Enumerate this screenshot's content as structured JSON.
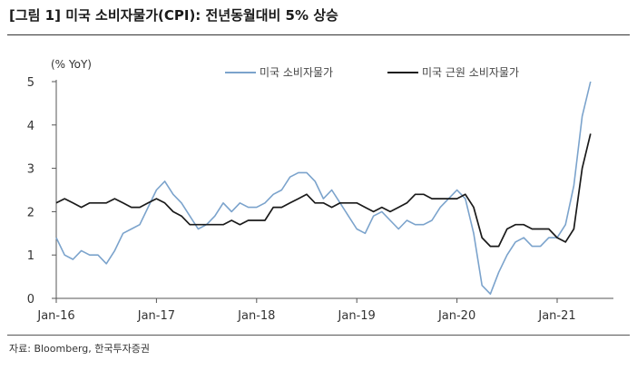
{
  "figure": {
    "title": "[그림 1] 미국 소비자물가(CPI): 전년동월대비 5% 상승",
    "source": "자료: Bloomberg, 한국투자증권"
  },
  "chart_data": {
    "type": "line",
    "title": "[그림 1] 미국 소비자물가(CPI): 전년동월대비 5% 상승",
    "unit_label": "(% YoY)",
    "ylim": [
      0,
      5
    ],
    "yticks": [
      0,
      1,
      2,
      3,
      4,
      5
    ],
    "x_tick_labels": [
      "Jan-16",
      "Jan-17",
      "Jan-18",
      "Jan-19",
      "Jan-20",
      "Jan-21"
    ],
    "x_tick_months": [
      "2016-01",
      "2017-01",
      "2018-01",
      "2019-01",
      "2020-01",
      "2021-01"
    ],
    "x": [
      "2016-01",
      "2016-02",
      "2016-03",
      "2016-04",
      "2016-05",
      "2016-06",
      "2016-07",
      "2016-08",
      "2016-09",
      "2016-10",
      "2016-11",
      "2016-12",
      "2017-01",
      "2017-02",
      "2017-03",
      "2017-04",
      "2017-05",
      "2017-06",
      "2017-07",
      "2017-08",
      "2017-09",
      "2017-10",
      "2017-11",
      "2017-12",
      "2018-01",
      "2018-02",
      "2018-03",
      "2018-04",
      "2018-05",
      "2018-06",
      "2018-07",
      "2018-08",
      "2018-09",
      "2018-10",
      "2018-11",
      "2018-12",
      "2019-01",
      "2019-02",
      "2019-03",
      "2019-04",
      "2019-05",
      "2019-06",
      "2019-07",
      "2019-08",
      "2019-09",
      "2019-10",
      "2019-11",
      "2019-12",
      "2020-01",
      "2020-02",
      "2020-03",
      "2020-04",
      "2020-05",
      "2020-06",
      "2020-07",
      "2020-08",
      "2020-09",
      "2020-10",
      "2020-11",
      "2020-12",
      "2021-01",
      "2021-02",
      "2021-03",
      "2021-04",
      "2021-05"
    ],
    "legend_position": "top",
    "grid": false,
    "series": [
      {
        "name": "미국 소비자물가",
        "color": "#7ba3cc",
        "values": [
          1.4,
          1.0,
          0.9,
          1.1,
          1.0,
          1.0,
          0.8,
          1.1,
          1.5,
          1.6,
          1.7,
          2.1,
          2.5,
          2.7,
          2.4,
          2.2,
          1.9,
          1.6,
          1.7,
          1.9,
          2.2,
          2.0,
          2.2,
          2.1,
          2.1,
          2.2,
          2.4,
          2.5,
          2.8,
          2.9,
          2.9,
          2.7,
          2.3,
          2.5,
          2.2,
          1.9,
          1.6,
          1.5,
          1.9,
          2.0,
          1.8,
          1.6,
          1.8,
          1.7,
          1.7,
          1.8,
          2.1,
          2.3,
          2.5,
          2.3,
          1.5,
          0.3,
          0.1,
          0.6,
          1.0,
          1.3,
          1.4,
          1.2,
          1.2,
          1.4,
          1.4,
          1.7,
          2.6,
          4.2,
          5.0
        ]
      },
      {
        "name": "미국 근원 소비자물가",
        "color": "#1a1a1a",
        "values": [
          2.2,
          2.3,
          2.2,
          2.1,
          2.2,
          2.2,
          2.2,
          2.3,
          2.2,
          2.1,
          2.1,
          2.2,
          2.3,
          2.2,
          2.0,
          1.9,
          1.7,
          1.7,
          1.7,
          1.7,
          1.7,
          1.8,
          1.7,
          1.8,
          1.8,
          1.8,
          2.1,
          2.1,
          2.2,
          2.3,
          2.4,
          2.2,
          2.2,
          2.1,
          2.2,
          2.2,
          2.2,
          2.1,
          2.0,
          2.1,
          2.0,
          2.1,
          2.2,
          2.4,
          2.4,
          2.3,
          2.3,
          2.3,
          2.3,
          2.4,
          2.1,
          1.4,
          1.2,
          1.2,
          1.6,
          1.7,
          1.7,
          1.6,
          1.6,
          1.6,
          1.4,
          1.3,
          1.6,
          3.0,
          3.8
        ]
      }
    ]
  }
}
